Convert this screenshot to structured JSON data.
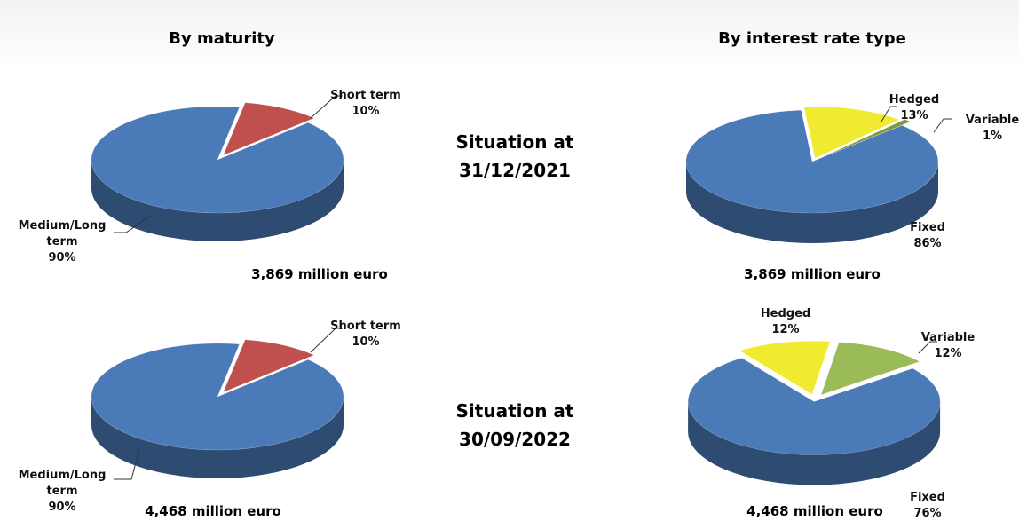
{
  "column_titles": [
    "By maturity",
    "By interest rate type"
  ],
  "situations": [
    "Situation at 31/12/2021",
    "Situation at 30/09/2022"
  ],
  "chart_data": [
    {
      "type": "pie",
      "subtitle": "3,869 million euro",
      "categories": [
        "Short term",
        "Medium/Long term"
      ],
      "values": [
        10,
        90
      ],
      "value_labels": [
        "10%",
        "90%"
      ],
      "colors": [
        "#c0504d",
        "#4a7ab8"
      ]
    },
    {
      "type": "pie",
      "subtitle": "3,869 million euro",
      "categories": [
        "Hedged",
        "Variable",
        "Fixed"
      ],
      "values": [
        13,
        1,
        86
      ],
      "value_labels": [
        "13%",
        "1%",
        "86%"
      ],
      "colors": [
        "#f0ea30",
        "#7f9a3c",
        "#4a7ab8"
      ]
    },
    {
      "type": "pie",
      "subtitle": "4,468 million euro",
      "categories": [
        "Short term",
        "Medium/Long term"
      ],
      "values": [
        10,
        90
      ],
      "value_labels": [
        "10%",
        "90%"
      ],
      "colors": [
        "#c0504d",
        "#4a7ab8"
      ]
    },
    {
      "type": "pie",
      "subtitle": "4,468 million euro",
      "categories": [
        "Hedged",
        "Variable",
        "Fixed"
      ],
      "values": [
        12,
        12,
        76
      ],
      "value_labels": [
        "12%",
        "12%",
        "76%"
      ],
      "colors": [
        "#f0ea30",
        "#9bbb59",
        "#4a7ab8"
      ]
    }
  ]
}
